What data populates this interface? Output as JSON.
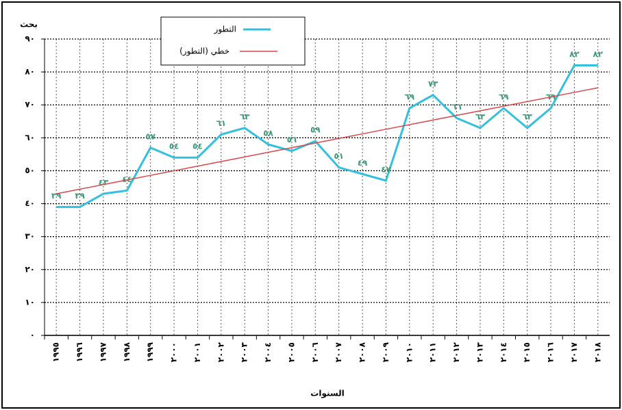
{
  "chart_data": {
    "type": "line",
    "y_axis_label": "بحث",
    "x_axis_label": "السنوات",
    "categories": [
      "١٩٩٥",
      "١٩٩٦",
      "١٩٩٧",
      "١٩٩٨",
      "١٩٩٩",
      "٢٠٠٠",
      "٢٠٠١",
      "٢٠٠٢",
      "٢٠٠٣",
      "٢٠٠٤",
      "٢٠٠٥",
      "٢٠٠٦",
      "٢٠٠٧",
      "٢٠٠٨",
      "٢٠٠٩",
      "٢٠١٠",
      "٢٠١١",
      "٢٠١٢",
      "٢٠١٣",
      "٢٠١٤",
      "٢٠١٥",
      "٢٠١٦",
      "٢٠١٧",
      "٢٠١٨"
    ],
    "series": [
      {
        "name": "التطور",
        "color": "#33c0de",
        "values": [
          39,
          39,
          43,
          44,
          57,
          54,
          54,
          61,
          63,
          58,
          56,
          59,
          51,
          49,
          47,
          69,
          73,
          66,
          63,
          69,
          63,
          69,
          82,
          82
        ],
        "value_labels": [
          "٣٩",
          "٣٩",
          "٤٣",
          "٤٤",
          "٥٧",
          "٥٤",
          "٥٤",
          "٦١",
          "٦٣",
          "٥٨",
          "٥٦",
          "٥٩",
          "٥١",
          "٤٩",
          "٤٧",
          "٦٩",
          "٧٣",
          "٦٦",
          "٦٣",
          "٦٩",
          "٦٣",
          "٦٩",
          "٨٢",
          "٨٢"
        ]
      },
      {
        "name": "خطي (التطور)",
        "color": "#d9474a",
        "values": [
          43.0,
          44.4,
          45.8,
          47.2,
          48.6,
          50.0,
          51.4,
          52.8,
          54.2,
          55.6,
          57.0,
          58.4,
          59.8,
          61.2,
          62.6,
          64.0,
          65.4,
          66.8,
          68.2,
          69.6,
          71.0,
          72.4,
          73.8,
          75.2
        ]
      }
    ],
    "ylim": [
      0,
      90
    ],
    "yticks": [
      {
        "value": 0,
        "label": "٠"
      },
      {
        "value": 10,
        "label": "١٠"
      },
      {
        "value": 20,
        "label": "٢٠"
      },
      {
        "value": 30,
        "label": "٣٠"
      },
      {
        "value": 40,
        "label": "٤٠"
      },
      {
        "value": 50,
        "label": "٥٠"
      },
      {
        "value": 60,
        "label": "٦٠"
      },
      {
        "value": 70,
        "label": "٧٠"
      },
      {
        "value": 80,
        "label": "٨٠"
      },
      {
        "value": 90,
        "label": "٩٠"
      }
    ],
    "grid": true
  }
}
